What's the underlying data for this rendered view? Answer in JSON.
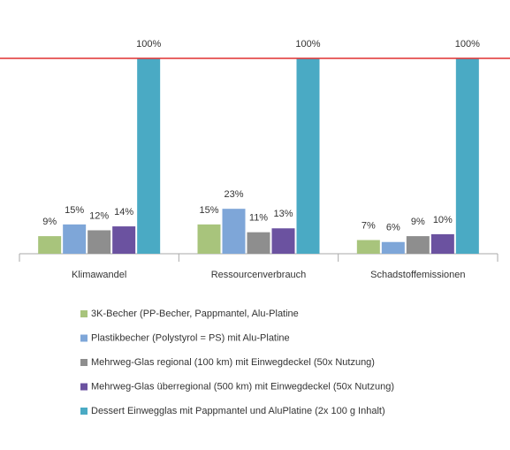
{
  "chart_data": {
    "type": "bar",
    "categories": [
      "Klimawandel",
      "Ressourcenverbrauch",
      "Schadstoffemissionen"
    ],
    "series": [
      {
        "name": "3K-Becher (PP-Becher, Pappmantel, Alu-Platine",
        "color": "#a8c47c",
        "values": [
          9,
          15,
          7
        ],
        "value_labels": [
          "9%",
          "15%",
          "7%"
        ]
      },
      {
        "name": "Plastikbecher (Polystyrol = PS) mit Alu-Platine",
        "color": "#7ea6d8",
        "values": [
          15,
          23,
          6
        ],
        "value_labels": [
          "15%",
          "23%",
          "6%"
        ]
      },
      {
        "name": "Mehrweg-Glas regional (100 km) mit Einwegdeckel (50x Nutzung)",
        "color": "#8e8e8e",
        "values": [
          12,
          11,
          9
        ],
        "value_labels": [
          "12%",
          "11%",
          "9%"
        ]
      },
      {
        "name": "Mehrweg-Glas überregional (500 km) mit Einwegdeckel (50x Nutzung)",
        "color": "#6b52a0",
        "values": [
          14,
          13,
          10
        ],
        "value_labels": [
          "14%",
          "13%",
          "10%"
        ]
      },
      {
        "name": "Dessert Einwegglas mit Pappmantel und AluPlatine (2x 100 g Inhalt)",
        "color": "#4aaac4",
        "values": [
          100,
          100,
          100
        ],
        "value_labels": [
          "100%",
          "100%",
          "100%"
        ]
      }
    ],
    "ylim": [
      0,
      100
    ],
    "reference_line": 100,
    "reference_color": "#e03030",
    "legend": "bottom"
  }
}
